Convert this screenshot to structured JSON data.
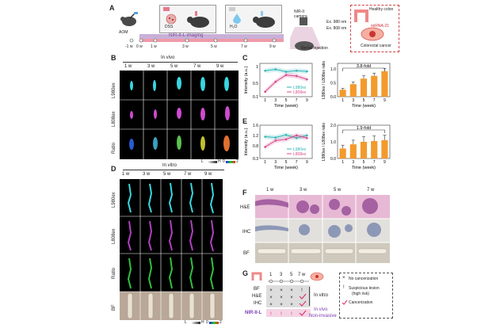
{
  "panelA": {
    "label": "A",
    "aom": "AOM",
    "dss": "DSS",
    "h2o": "H₂O",
    "nir_imaging": "NIR-II-L imaging",
    "timeline": [
      "-1 w",
      "0 w",
      "1 w",
      "3 w",
      "5 w",
      "7 w",
      "9 w"
    ],
    "camera": "NIR-II camera",
    "ex980": "Ex. 980 nm",
    "ex808": "Ex. 808 nm",
    "rectal": "Rectal injection",
    "healthy": "Healthy colon",
    "mirna": "miRNA-21",
    "crc": "Colorectal cancer"
  },
  "panelB": {
    "label": "B",
    "title": "In vivo",
    "cols": [
      "1 w",
      "3 w",
      "5 w",
      "7 w",
      "9 w"
    ],
    "rows": [
      "L980ex",
      "L808ex",
      "Ratio"
    ],
    "scale_left": "L",
    "scale_h": "H",
    "scale_0": "0",
    "scale_2": "2"
  },
  "panelD": {
    "label": "D",
    "title": "In vitro",
    "cols": [
      "1 w",
      "3 w",
      "5 w",
      "7 w",
      "9 w"
    ],
    "rows": [
      "L980ex",
      "L808ex",
      "Ratio",
      "BF"
    ],
    "scale_left": "L",
    "scale_h": "H",
    "scale_0": "0",
    "scale_2": "2"
  },
  "panelC": {
    "label": "C"
  },
  "panelE": {
    "label": "E"
  },
  "panelF": {
    "label": "F",
    "cols": [
      "1 w",
      "3 w",
      "5 w",
      "7 w"
    ],
    "rows": [
      "H&E",
      "IHC",
      "BF"
    ]
  },
  "panelG": {
    "label": "G",
    "weeks": [
      "1",
      "3",
      "5",
      "7 w"
    ],
    "rows": [
      "BF",
      "H&E",
      "IHC",
      "NIR-II-L"
    ],
    "in_vitro": "In vitro",
    "in_vivo": "In vivo",
    "non_invasive": "Non-invasive",
    "legend_no": "No cancerization",
    "legend_susp1": "Suspicious lesion",
    "legend_susp2": "(high risk)",
    "legend_cancer": "Cancerization"
  },
  "chart_data": [
    {
      "type": "line",
      "panel": "C-left",
      "xlabel": "Time (week)",
      "ylabel": "Intensity (a.u.)",
      "x": [
        1,
        3,
        5,
        7,
        9
      ],
      "ylim": [
        0.1,
        1.1
      ],
      "yticks": [
        "0.1",
        "0.5",
        "1"
      ],
      "series": [
        {
          "name": "L980ex",
          "color": "#2bb5b5",
          "values": [
            0.88,
            0.92,
            0.85,
            0.88,
            0.86
          ]
        },
        {
          "name": "L808ex",
          "color": "#d94a8c",
          "values": [
            0.25,
            0.55,
            0.75,
            0.72,
            0.62
          ]
        }
      ]
    },
    {
      "type": "bar",
      "panel": "C-right",
      "xlabel": "Time (week)",
      "ylabel": "L980ex / L808ex ratio",
      "categories": [
        "1",
        "3",
        "5",
        "7",
        "9"
      ],
      "values": [
        0.25,
        0.45,
        0.65,
        0.75,
        0.92
      ],
      "errors": [
        0.05,
        0.08,
        0.1,
        0.1,
        0.1
      ],
      "ylim": [
        0,
        1.2
      ],
      "yticks": [
        "0.0",
        "0.5",
        "1.0"
      ],
      "annotation": "3.8-fold",
      "color": "#f39a2c"
    },
    {
      "type": "line",
      "panel": "E-left",
      "xlabel": "Time (week)",
      "ylabel": "Intensity (a.u.)",
      "x": [
        1,
        3,
        5,
        7,
        9
      ],
      "ylim": [
        0.3,
        1.6
      ],
      "yticks": [
        "0.3",
        "0.8",
        "1.2",
        "1.6"
      ],
      "series": [
        {
          "name": "L980ex",
          "color": "#2bb5b5",
          "values": [
            1.15,
            1.12,
            1.22,
            1.1,
            1.2
          ]
        },
        {
          "name": "L808ex",
          "color": "#d94a8c",
          "values": [
            0.75,
            1.0,
            1.05,
            1.2,
            1.1
          ]
        }
      ]
    },
    {
      "type": "bar",
      "panel": "E-right",
      "xlabel": "Time (week)",
      "ylabel": "L980ex / L808ex ratio",
      "categories": [
        "1",
        "3",
        "5",
        "7",
        "9"
      ],
      "values": [
        0.6,
        0.85,
        1.0,
        1.05,
        1.1
      ],
      "errors": [
        0.2,
        0.25,
        0.3,
        0.3,
        0.3
      ],
      "ylim": [
        0,
        2.0
      ],
      "yticks": [
        "0.0",
        "1.0",
        "2.0"
      ],
      "annotation": "1.9-fold",
      "color": "#f39a2c"
    }
  ]
}
